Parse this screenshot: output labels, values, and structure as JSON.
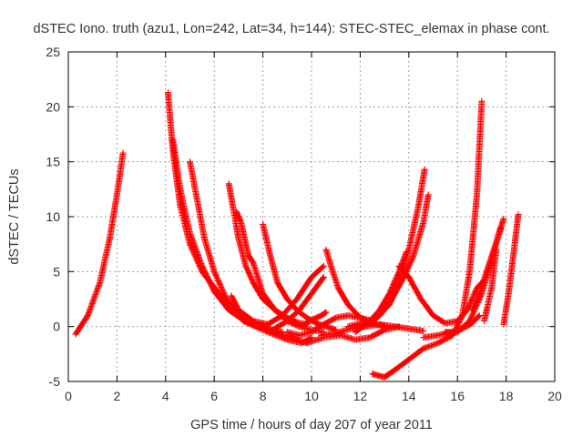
{
  "chart_data": {
    "type": "scatter",
    "title": "dSTEC Iono. truth (azu1, Lon=242, Lat=34, h=144): STEC-STEC_elemax in phase cont.",
    "xlabel": "GPS time / hours of day 207 of year 2011",
    "ylabel": "dSTEC  / TECUs",
    "xlim": [
      0,
      20
    ],
    "ylim": [
      -5,
      25
    ],
    "xticks": [
      0,
      2,
      4,
      6,
      8,
      10,
      12,
      14,
      16,
      18,
      20
    ],
    "yticks": [
      -5,
      0,
      5,
      10,
      15,
      20,
      25
    ],
    "grid": true,
    "legend": "none",
    "marker": "plus",
    "color": "#ff0000",
    "series": [
      {
        "x": [
          0.3,
          0.8,
          1.3,
          1.7,
          2.0,
          2.25
        ],
        "y": [
          -0.7,
          1.0,
          4.0,
          8.0,
          12.0,
          15.8
        ]
      },
      {
        "x": [
          4.1,
          4.3,
          4.6,
          5.0,
          5.5,
          6.2,
          6.8,
          7.2,
          7.8,
          8.3,
          8.8
        ],
        "y": [
          21.3,
          16.0,
          11.0,
          7.5,
          5.0,
          3.0,
          1.5,
          0.5,
          0.0,
          -0.3,
          -0.5
        ]
      },
      {
        "x": [
          4.3,
          4.6,
          5.0,
          5.5,
          6.0,
          6.6,
          7.4,
          8.2,
          9.0,
          9.6,
          10.0
        ],
        "y": [
          17.0,
          12.5,
          8.5,
          5.5,
          3.2,
          1.5,
          0.3,
          -0.5,
          -1.2,
          -1.5,
          -1.0
        ]
      },
      {
        "x": [
          5.0,
          5.3,
          5.6,
          6.0,
          6.5,
          7.0,
          7.8,
          8.5,
          9.2,
          9.8
        ],
        "y": [
          15.0,
          11.5,
          8.0,
          5.0,
          2.5,
          1.0,
          0.0,
          -0.5,
          -1.0,
          -1.5
        ]
      },
      {
        "x": [
          6.6,
          6.8,
          7.0,
          7.3,
          7.6,
          8.0,
          8.5,
          9.0,
          9.4,
          9.8
        ],
        "y": [
          13.0,
          10.5,
          8.0,
          5.5,
          4.0,
          2.5,
          1.5,
          0.8,
          0.4,
          0.2
        ]
      },
      {
        "x": [
          6.9,
          7.1,
          7.4,
          7.6,
          8.0,
          8.5,
          9.0,
          9.5,
          10.0,
          10.5
        ],
        "y": [
          10.5,
          9.5,
          6.5,
          5.8,
          3.0,
          1.5,
          0.5,
          0.0,
          -0.3,
          -0.5
        ]
      },
      {
        "x": [
          8.0,
          8.3,
          8.6,
          9.0,
          9.4,
          9.8,
          10.2,
          10.6,
          11.0
        ],
        "y": [
          9.3,
          6.5,
          4.0,
          2.5,
          1.5,
          0.8,
          0.3,
          0.0,
          -0.3
        ]
      },
      {
        "x": [
          6.7,
          7.0,
          7.6,
          8.2,
          8.8,
          9.4,
          10.0,
          10.5
        ],
        "y": [
          2.8,
          1.5,
          0.5,
          0.2,
          1.0,
          2.5,
          4.5,
          5.5
        ]
      },
      {
        "x": [
          7.8,
          8.4,
          9.0,
          9.5,
          10.0,
          10.5
        ],
        "y": [
          0.2,
          -0.3,
          0.5,
          1.5,
          3.0,
          4.5
        ]
      },
      {
        "x": [
          9.0,
          9.5,
          10.0,
          10.5,
          11.0,
          11.5,
          12.0,
          12.5
        ],
        "y": [
          -0.5,
          -0.8,
          -0.5,
          0.2,
          0.8,
          1.0,
          0.8,
          0.5
        ]
      },
      {
        "x": [
          9.6,
          10.0,
          10.4,
          10.6
        ],
        "y": [
          0.0,
          0.6,
          1.0,
          1.3
        ]
      },
      {
        "x": [
          10.6,
          10.8,
          11.1,
          11.5,
          12.0,
          12.5,
          13.0
        ],
        "y": [
          7.0,
          5.5,
          3.5,
          2.0,
          0.8,
          0.3,
          0.0
        ]
      },
      {
        "x": [
          10.4,
          11.0,
          11.6,
          12.2,
          12.8,
          13.4,
          14.0,
          14.6
        ],
        "y": [
          -0.8,
          -0.6,
          -0.2,
          0.0,
          0.2,
          0.0,
          -0.2,
          -0.4
        ]
      },
      {
        "x": [
          9.8,
          10.5,
          11.2,
          11.8,
          12.4,
          13.0,
          13.6
        ],
        "y": [
          -1.5,
          -1.0,
          -0.8,
          -1.2,
          -1.0,
          -0.3,
          0.0
        ]
      },
      {
        "x": [
          11.5,
          12.0,
          12.6,
          13.2,
          13.6,
          14.0,
          14.4,
          14.65
        ],
        "y": [
          0.0,
          0.3,
          0.6,
          2.0,
          4.0,
          7.0,
          11.0,
          14.3
        ]
      },
      {
        "x": [
          11.8,
          12.3,
          12.8,
          13.3,
          13.8,
          14.2,
          14.6,
          14.8
        ],
        "y": [
          -0.5,
          0.3,
          1.0,
          2.5,
          4.5,
          6.5,
          9.5,
          12.0
        ]
      },
      {
        "x": [
          12.4,
          12.8,
          13.2,
          13.6,
          13.9
        ],
        "y": [
          0.5,
          1.5,
          3.0,
          5.0,
          6.8
        ]
      },
      {
        "x": [
          12.5,
          12.8,
          13.0,
          13.4,
          14.0,
          14.6,
          15.2,
          15.8,
          16.2,
          16.5,
          16.8,
          17.0
        ],
        "y": [
          -4.3,
          -4.5,
          -4.6,
          -4.0,
          -3.0,
          -2.0,
          -1.5,
          -0.8,
          1.0,
          5.0,
          12.0,
          20.5
        ]
      },
      {
        "x": [
          13.6,
          14.0,
          14.5,
          15.0,
          15.5,
          16.0,
          16.4,
          16.8,
          17.0
        ],
        "y": [
          5.5,
          4.5,
          2.5,
          1.0,
          0.3,
          0.5,
          1.5,
          3.5,
          4.0
        ]
      },
      {
        "x": [
          14.6,
          15.2,
          15.8,
          16.2,
          16.6,
          16.9
        ],
        "y": [
          -1.0,
          -0.8,
          -0.5,
          -0.2,
          0.3,
          1.0
        ]
      },
      {
        "x": [
          15.5,
          16.0,
          16.5,
          17.0,
          17.4,
          17.7,
          17.9
        ],
        "y": [
          -0.5,
          -0.5,
          0.5,
          3.0,
          6.0,
          8.5,
          9.8
        ]
      },
      {
        "x": [
          16.6,
          16.9,
          17.2,
          17.5,
          17.8
        ],
        "y": [
          1.5,
          3.0,
          5.0,
          7.0,
          9.0
        ]
      },
      {
        "x": [
          17.1,
          17.4,
          17.6
        ],
        "y": [
          0.5,
          3.5,
          7.0
        ]
      },
      {
        "x": [
          17.9,
          18.1,
          18.3,
          18.5
        ],
        "y": [
          0.2,
          3.0,
          6.5,
          10.2
        ]
      }
    ]
  }
}
